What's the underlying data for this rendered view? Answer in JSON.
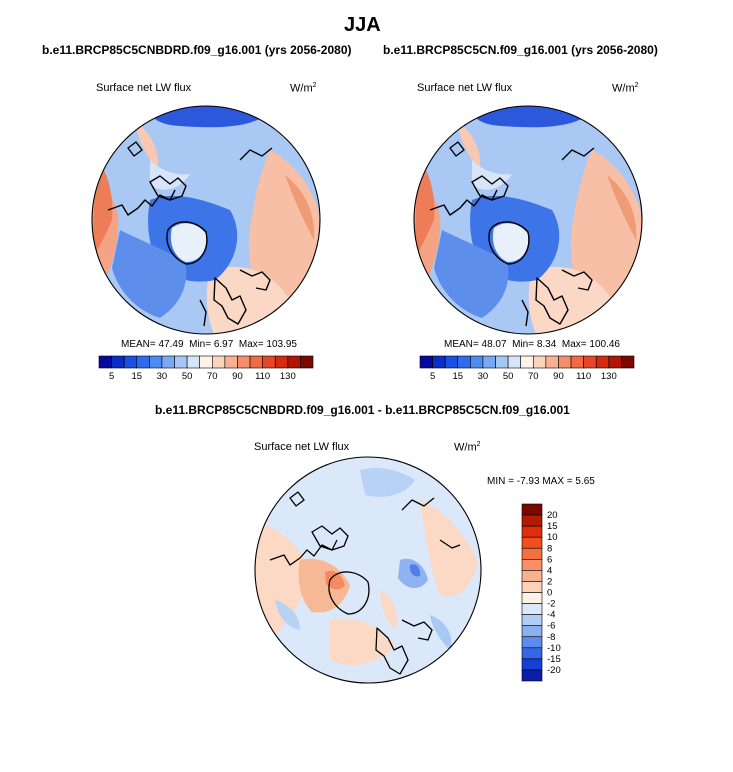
{
  "page_title": "JJA",
  "panels": [
    {
      "case": "b.e11.BRCP85C5CNBDRD.f09_g16.001 (yrs 2056-2080)",
      "variable": "Surface net LW flux",
      "units": "W/m",
      "units_exp": "2",
      "mean_label": "MEAN=",
      "mean": "47.49",
      "min_label": "Min=",
      "min": "6.97",
      "max_label": "Max=",
      "max": "103.95"
    },
    {
      "case": "b.e11.BRCP85C5CN.f09_g16.001 (yrs 2056-2080)",
      "variable": "Surface net LW flux",
      "units": "W/m",
      "units_exp": "2",
      "mean_label": "MEAN=",
      "mean": "48.07",
      "min_label": "Min=",
      "min": "8.34",
      "max_label": "Max=",
      "max": "100.46"
    },
    {
      "case": "b.e11.BRCP85C5CNBDRD.f09_g16.001 - b.e11.BRCP85C5CN.f09_g16.001",
      "variable": "Surface net LW flux",
      "units": "W/m",
      "units_exp": "2",
      "min_label": "MIN =",
      "min": "-7.93",
      "max_label": "MAX =",
      "max": "5.65"
    }
  ],
  "colorbar_top": {
    "tick_labels": [
      "5",
      "15",
      "30",
      "50",
      "70",
      "90",
      "110",
      "130"
    ],
    "colors": [
      "#08089c",
      "#0c2dc8",
      "#1a4fe0",
      "#2f6bee",
      "#4f8af0",
      "#7aa9f2",
      "#a6c6f4",
      "#d6e6fa",
      "#fff2e6",
      "#fcd4bd",
      "#f9b194",
      "#f58e6c",
      "#f06a44",
      "#e8462a",
      "#d42a12",
      "#b01505",
      "#7a0a00"
    ]
  },
  "colorbar_diff": {
    "tick_labels": [
      "20",
      "15",
      "10",
      "8",
      "6",
      "4",
      "2",
      "0",
      "-2",
      "-4",
      "-6",
      "-8",
      "-10",
      "-15",
      "-20"
    ],
    "colors": [
      "#7a0a00",
      "#b51a05",
      "#e02e0c",
      "#f04e1e",
      "#f47040",
      "#f79068",
      "#f9b090",
      "#fcd2b8",
      "#fff2e4",
      "#dae8fa",
      "#b2cdf5",
      "#8ab0f0",
      "#5d8ced",
      "#3466e6",
      "#1440d8",
      "#0a1ea8"
    ]
  }
}
